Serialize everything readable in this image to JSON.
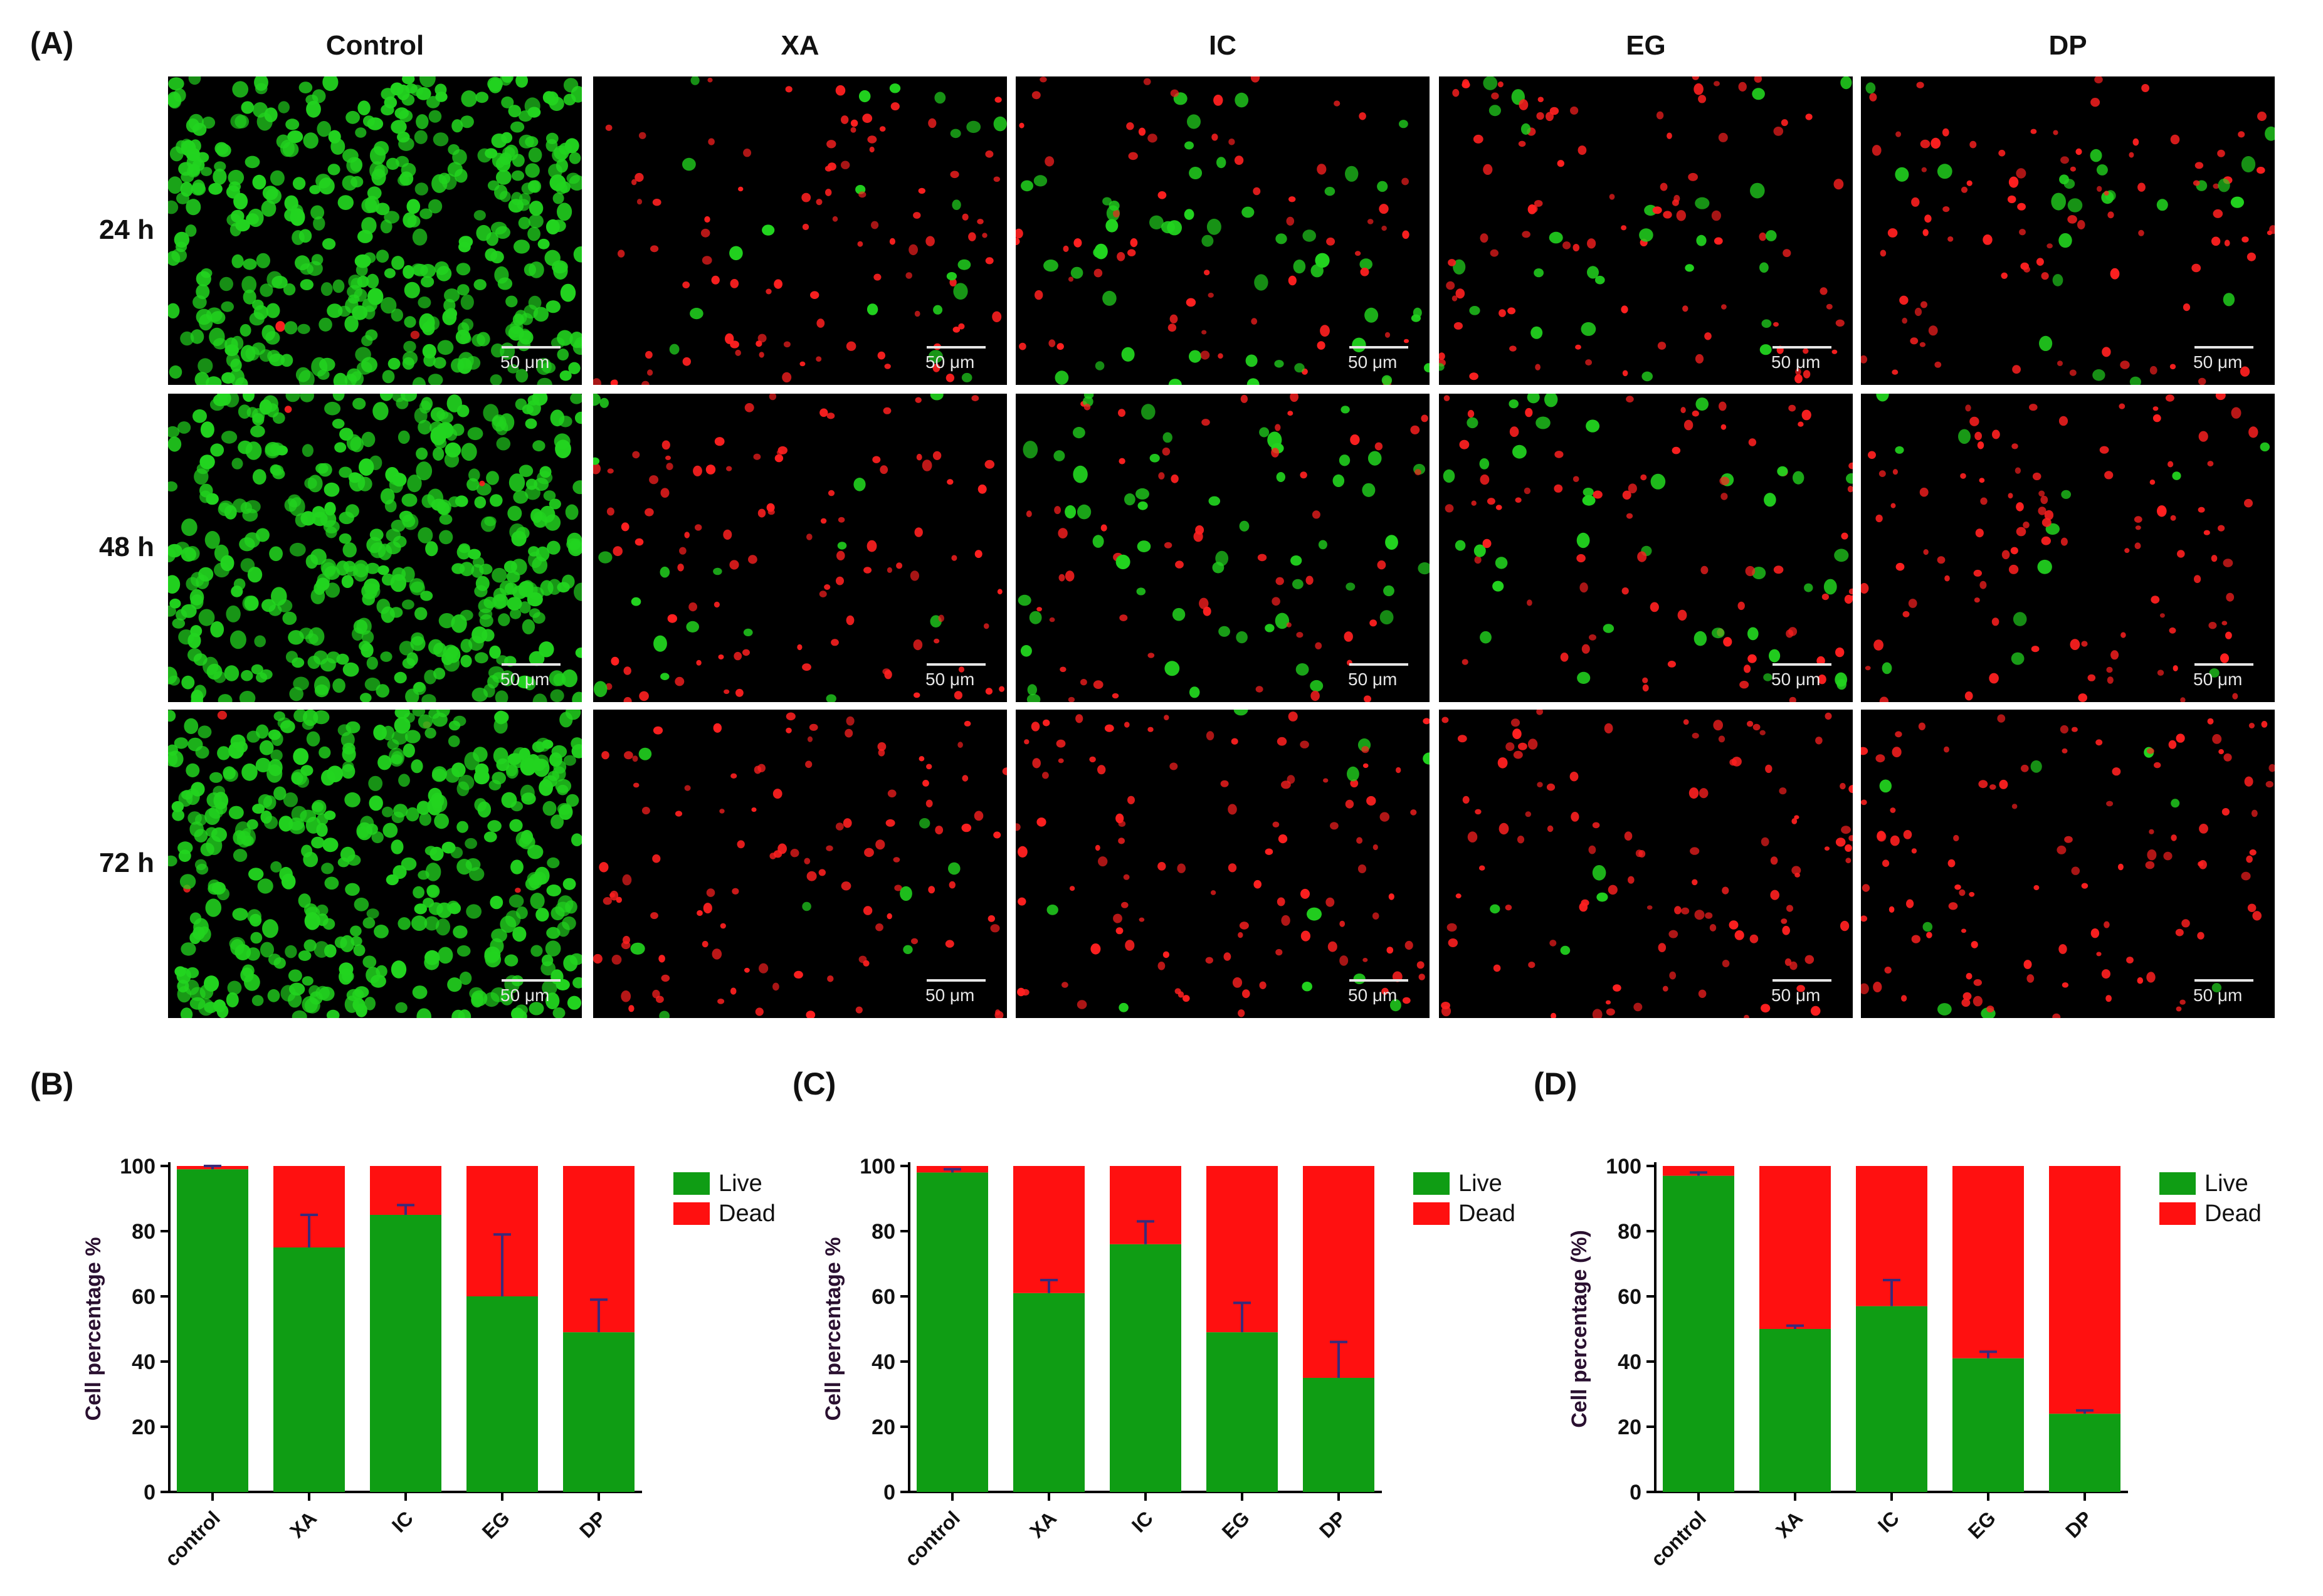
{
  "panels": {
    "a_label": "(A)",
    "b_label": "(B)",
    "c_label": "(C)",
    "d_label": "(D)"
  },
  "micrographs": {
    "columns": [
      "Control",
      "XA",
      "IC",
      "EG",
      "DP"
    ],
    "rows": [
      "24 h",
      "48 h",
      "72 h"
    ],
    "scale_bar": "50 μm",
    "colors": {
      "live": "#22d41f",
      "dead": "#ff2020",
      "background": "#000000"
    },
    "live_fraction_shown": [
      [
        0.99,
        0.2,
        0.55,
        0.3,
        0.2
      ],
      [
        0.99,
        0.15,
        0.5,
        0.35,
        0.1
      ],
      [
        0.99,
        0.08,
        0.1,
        0.05,
        0.1
      ]
    ]
  },
  "chart_data": [
    {
      "type": "bar",
      "stacked": true,
      "categories": [
        "control",
        "XA",
        "IC",
        "EG",
        "DP"
      ],
      "series": [
        {
          "name": "Live",
          "color": "#0f9d14",
          "values": [
            99,
            75,
            85,
            60,
            49
          ],
          "error": [
            1,
            10,
            3,
            19,
            10
          ]
        },
        {
          "name": "Dead",
          "color": "#ff1010",
          "values": [
            1,
            25,
            15,
            40,
            51
          ]
        }
      ],
      "ylabel": "Cell percentage %",
      "ylim": [
        0,
        100
      ],
      "yticks": [
        0,
        20,
        40,
        60,
        80,
        100
      ],
      "legend": "top-right"
    },
    {
      "type": "bar",
      "stacked": true,
      "categories": [
        "control",
        "XA",
        "IC",
        "EG",
        "DP"
      ],
      "series": [
        {
          "name": "Live",
          "color": "#0f9d14",
          "values": [
            98,
            61,
            76,
            49,
            35
          ],
          "error": [
            1,
            4,
            7,
            9,
            11
          ]
        },
        {
          "name": "Dead",
          "color": "#ff1010",
          "values": [
            2,
            39,
            24,
            51,
            65
          ]
        }
      ],
      "ylabel": "Cell percentage %",
      "ylim": [
        0,
        100
      ],
      "yticks": [
        0,
        20,
        40,
        60,
        80,
        100
      ],
      "legend": "top-right"
    },
    {
      "type": "bar",
      "stacked": true,
      "categories": [
        "control",
        "XA",
        "IC",
        "EG",
        "DP"
      ],
      "series": [
        {
          "name": "Live",
          "color": "#0f9d14",
          "values": [
            97,
            50,
            57,
            41,
            24
          ],
          "error": [
            1,
            1,
            8,
            2,
            1
          ]
        },
        {
          "name": "Dead",
          "color": "#ff1010",
          "values": [
            3,
            50,
            43,
            59,
            76
          ]
        }
      ],
      "ylabel": "Cell percentage (%)",
      "ylim": [
        0,
        100
      ],
      "yticks": [
        0,
        20,
        40,
        60,
        80,
        100
      ],
      "legend": "top-right"
    }
  ]
}
